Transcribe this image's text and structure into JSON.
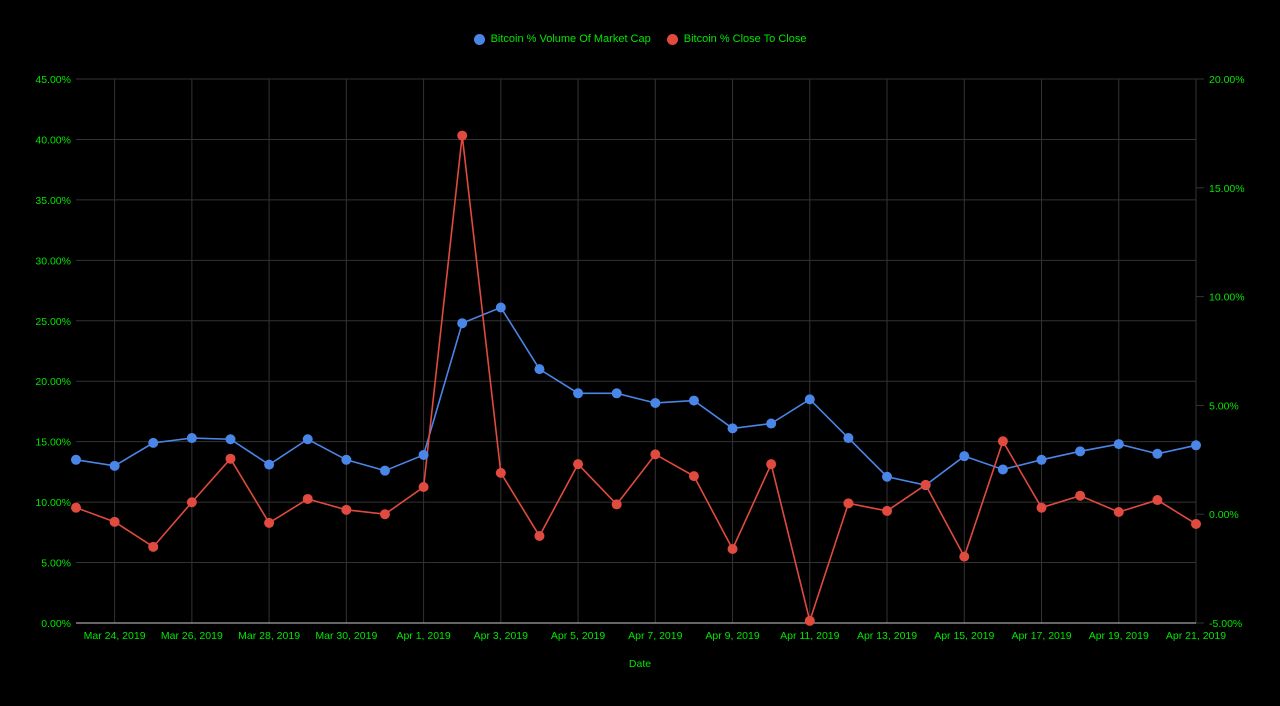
{
  "colors": {
    "background": "#000000",
    "text": "#00e600",
    "grid": "#333333",
    "series_volume": "#4a86e8",
    "series_close": "#e04a3f"
  },
  "chart_data": {
    "type": "line",
    "xlabel": "Date",
    "x": [
      "Mar 23, 2019",
      "Mar 24, 2019",
      "Mar 25, 2019",
      "Mar 26, 2019",
      "Mar 27, 2019",
      "Mar 28, 2019",
      "Mar 29, 2019",
      "Mar 30, 2019",
      "Mar 31, 2019",
      "Apr 1, 2019",
      "Apr 2, 2019",
      "Apr 3, 2019",
      "Apr 4, 2019",
      "Apr 5, 2019",
      "Apr 6, 2019",
      "Apr 7, 2019",
      "Apr 8, 2019",
      "Apr 9, 2019",
      "Apr 10, 2019",
      "Apr 11, 2019",
      "Apr 12, 2019",
      "Apr 13, 2019",
      "Apr 14, 2019",
      "Apr 15, 2019",
      "Apr 16, 2019",
      "Apr 17, 2019",
      "Apr 18, 2019",
      "Apr 19, 2019",
      "Apr 20, 2019",
      "Apr 21, 2019"
    ],
    "x_tick_labels": [
      "Mar 24, 2019",
      "Mar 26, 2019",
      "Mar 28, 2019",
      "Mar 30, 2019",
      "Apr 1, 2019",
      "Apr 3, 2019",
      "Apr 5, 2019",
      "Apr 7, 2019",
      "Apr 9, 2019",
      "Apr 11, 2019",
      "Apr 13, 2019",
      "Apr 15, 2019",
      "Apr 17, 2019",
      "Apr 19, 2019",
      "Apr 21, 2019"
    ],
    "y_left": {
      "ylim": [
        0,
        45
      ],
      "ticks": [
        "0.00%",
        "5.00%",
        "10.00%",
        "15.00%",
        "20.00%",
        "25.00%",
        "30.00%",
        "35.00%",
        "40.00%",
        "45.00%"
      ]
    },
    "y_right": {
      "ylim": [
        -5,
        20
      ],
      "ticks": [
        "-5.00%",
        "0.00%",
        "5.00%",
        "10.00%",
        "15.00%",
        "20.00%"
      ]
    },
    "grid": true,
    "legend_position": "top-center",
    "series": [
      {
        "name": "Bitcoin % Volume Of Market Cap",
        "axis": "left",
        "values": [
          13.5,
          13.0,
          14.9,
          15.3,
          15.2,
          13.1,
          15.2,
          13.5,
          12.6,
          13.9,
          24.8,
          26.1,
          21.0,
          19.0,
          19.0,
          18.2,
          18.4,
          16.1,
          16.5,
          18.5,
          15.3,
          12.1,
          11.4,
          13.8,
          12.7,
          13.5,
          14.2,
          14.8,
          14.0,
          14.7
        ]
      },
      {
        "name": "Bitcoin % Close To Close",
        "axis": "right",
        "values": [
          0.3,
          -0.35,
          -1.5,
          0.55,
          2.55,
          -0.4,
          0.7,
          0.2,
          0.0,
          1.25,
          17.4,
          1.9,
          -1.0,
          2.3,
          0.45,
          2.75,
          1.75,
          -1.6,
          2.3,
          -4.9,
          0.5,
          0.15,
          1.35,
          -1.95,
          3.35,
          0.3,
          0.85,
          0.1,
          0.65,
          -0.45
        ]
      }
    ]
  }
}
